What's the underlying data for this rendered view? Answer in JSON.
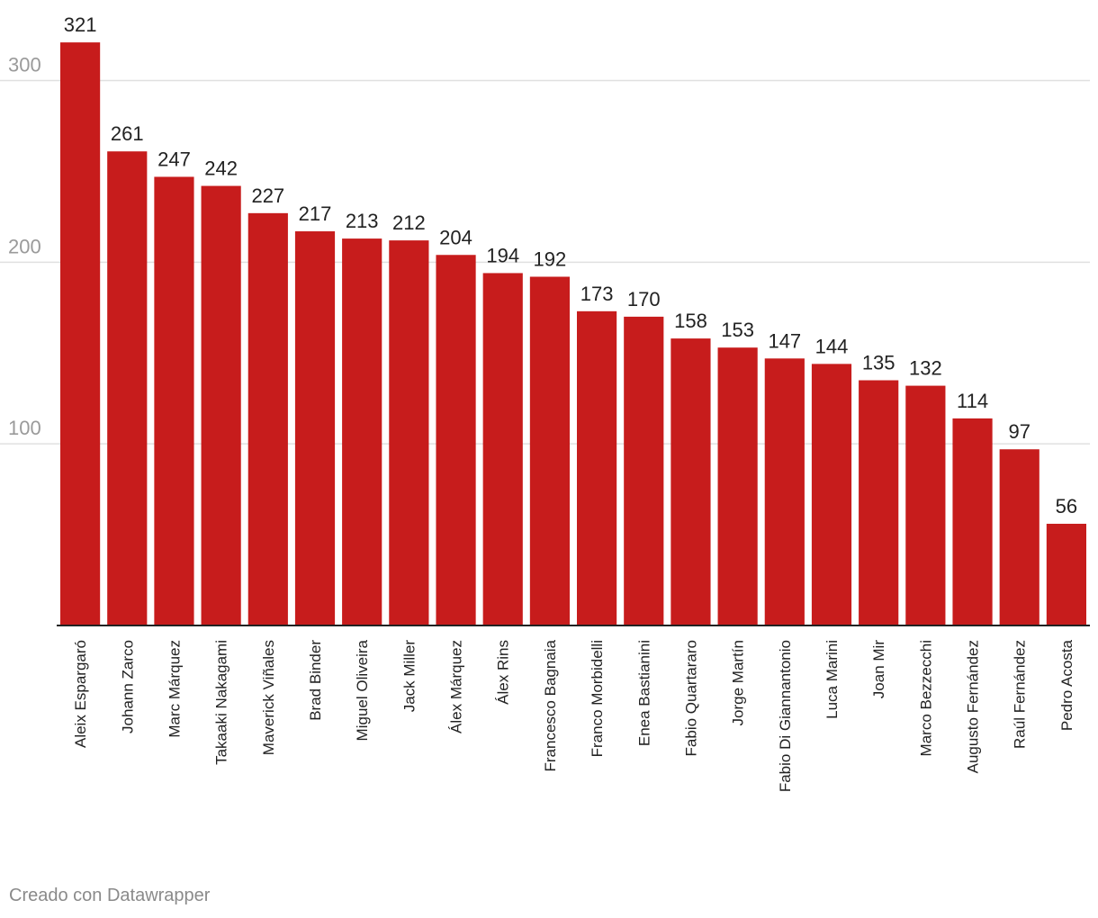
{
  "chart_data": {
    "type": "bar",
    "categories": [
      "Aleix Espargaró",
      "Johann Zarco",
      "Marc Márquez",
      "Takaaki Nakagami",
      "Maverick Viñales",
      "Brad Binder",
      "Miguel Oliveira",
      "Jack Miller",
      "Álex Márquez",
      "Álex Rins",
      "Francesco Bagnaia",
      "Franco Morbidelli",
      "Enea Bastianini",
      "Fabio Quartararo",
      "Jorge Martín",
      "Fabio Di Giannantonio",
      "Luca Marini",
      "Joan Mir",
      "Marco Bezzecchi",
      "Augusto Fernández",
      "Raúl Fernández",
      "Pedro Acosta"
    ],
    "values": [
      321,
      261,
      247,
      242,
      227,
      217,
      213,
      212,
      204,
      194,
      192,
      173,
      170,
      158,
      153,
      147,
      144,
      135,
      132,
      114,
      97,
      56
    ],
    "yticks": [
      100,
      200,
      300
    ],
    "ylim": [
      0,
      325
    ],
    "grid": true,
    "bar_color": "#c71c1c",
    "title": "",
    "xlabel": "",
    "ylabel": ""
  },
  "footer": {
    "credit": "Creado con Datawrapper"
  }
}
